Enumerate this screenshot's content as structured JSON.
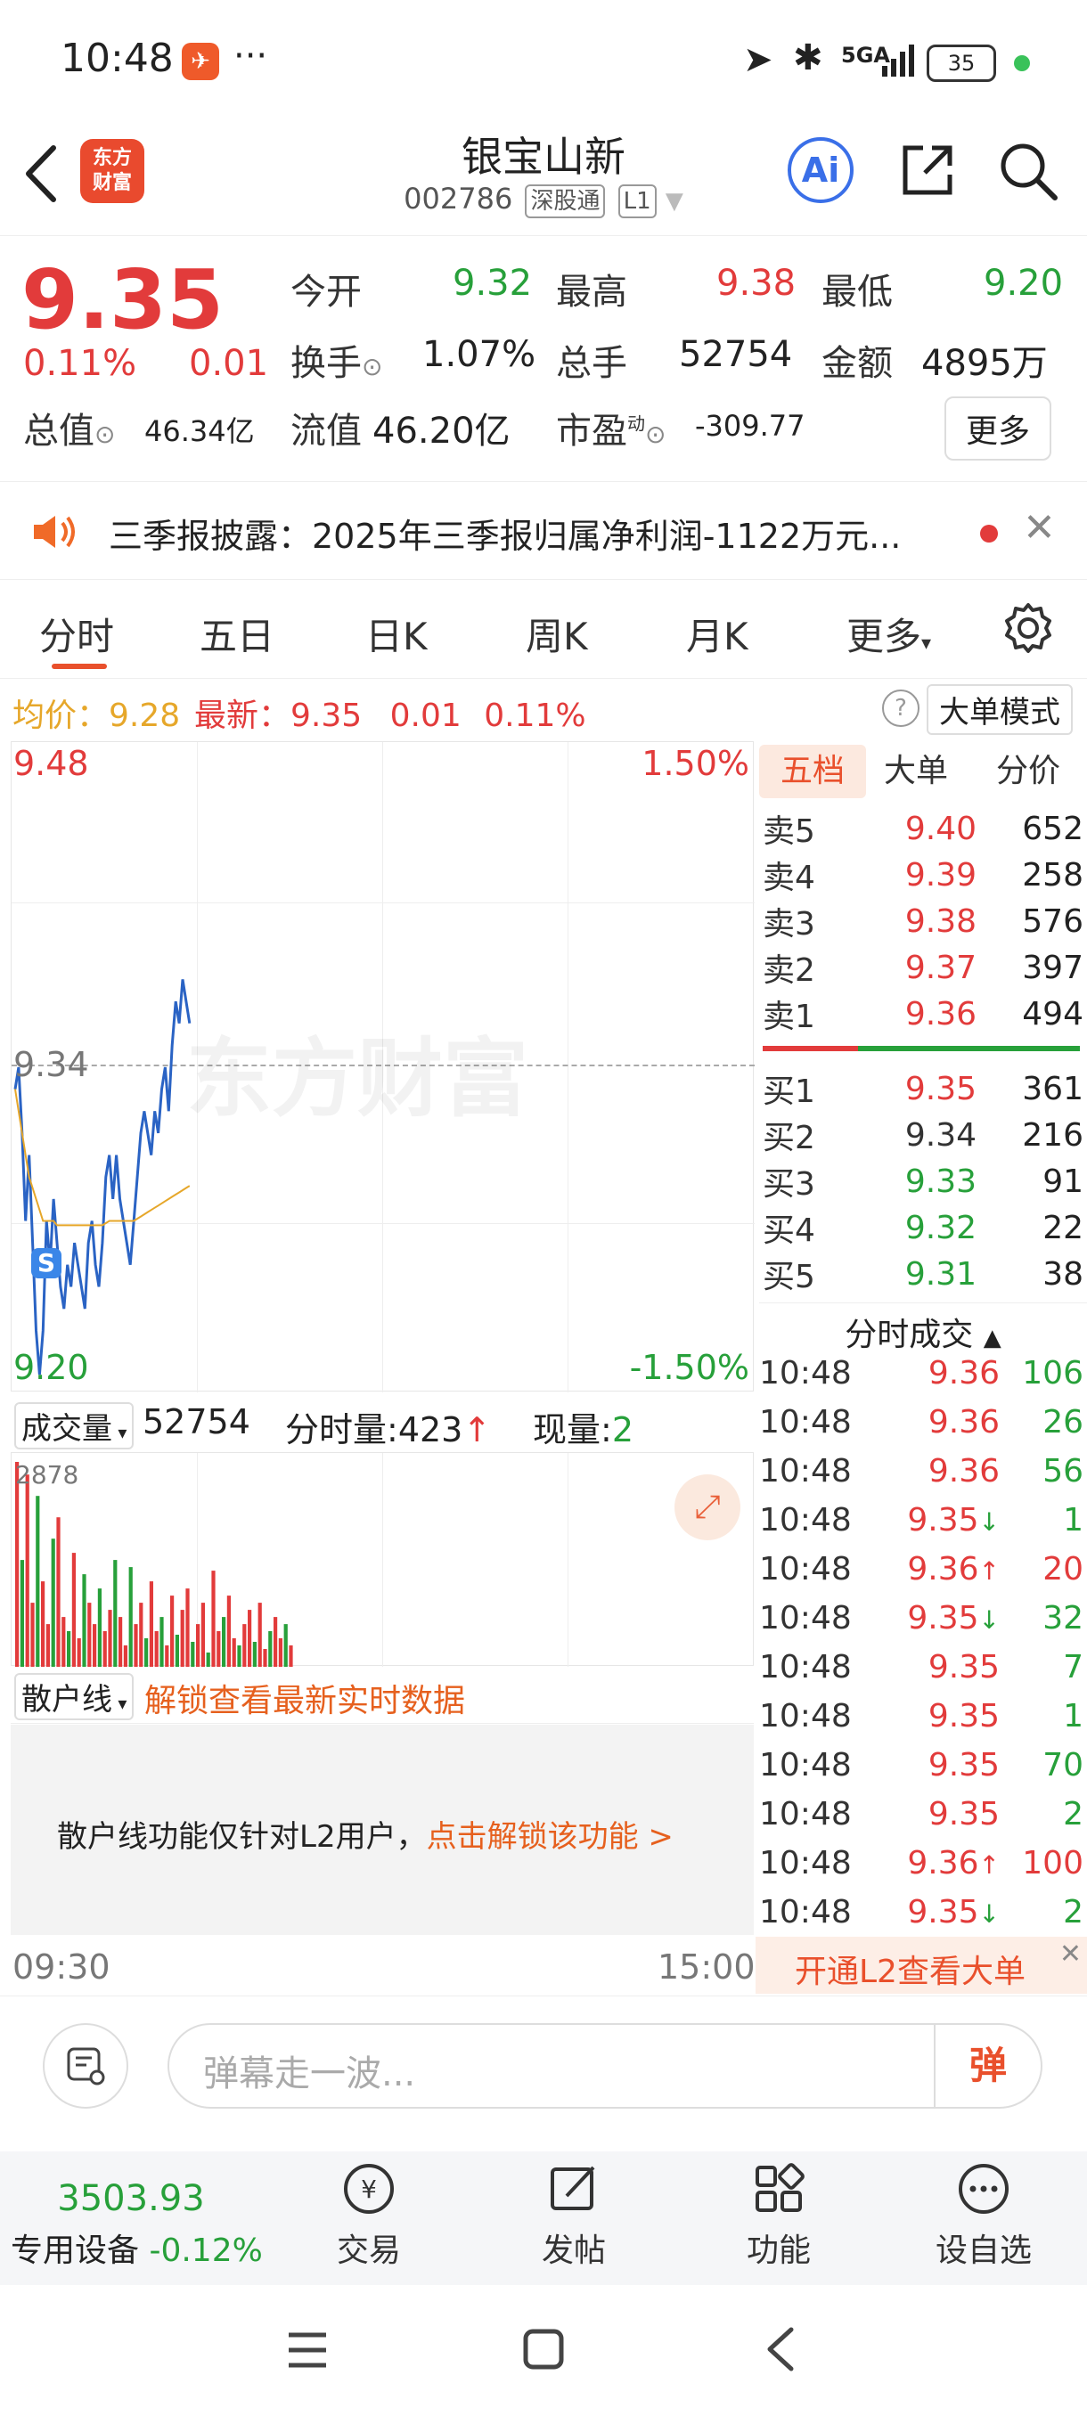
{
  "status_bar": {
    "time": "10:48",
    "dots": "···",
    "network": "5GA",
    "battery": "35"
  },
  "header": {
    "logo_line1": "东方",
    "logo_line2": "财富",
    "title": "银宝山新",
    "code": "002786",
    "market": "深股通",
    "level": "L1",
    "ai_label": "Ai"
  },
  "quote": {
    "price": "9.35",
    "change_pct": "0.11%",
    "change": "0.01",
    "open_label": "今开",
    "open": "9.32",
    "high_label": "最高",
    "high": "9.38",
    "low_label": "最低",
    "low": "9.20",
    "turnover_label": "换手",
    "turnover": "1.07%",
    "volume_label": "总手",
    "volume": "52754",
    "amount_label": "金额",
    "amount": "4895万",
    "mktcap_label": "总值",
    "mktcap": "46.34亿",
    "float_label": "流值",
    "float": "46.20亿",
    "pe_label": "市盈",
    "pe_sup": "动",
    "pe": "-309.77",
    "more": "更多"
  },
  "notice": {
    "text": "三季报披露：2025年三季报归属净利润-1122万元..."
  },
  "tabs": [
    {
      "label": "分时"
    },
    {
      "label": "五日"
    },
    {
      "label": "日K"
    },
    {
      "label": "周K"
    },
    {
      "label": "月K"
    },
    {
      "label": "更多"
    }
  ],
  "chart_header": {
    "avg_label": "均价：",
    "avg": "9.28",
    "latest_label": "最新：",
    "latest": "9.35",
    "chg": "0.01",
    "chg_pct": "0.11%",
    "mode_button": "大单模式"
  },
  "chart_labels": {
    "y_max": "9.48",
    "y_mid": "9.34",
    "y_min": "9.20",
    "pct_max": "1.50%",
    "pct_min": "-1.50%",
    "s_marker": "S",
    "watermark": "东方财富"
  },
  "chart_data": {
    "type": "line",
    "ylim": [
      9.2,
      9.48
    ],
    "prev_close": 9.34,
    "series": [
      {
        "values": [
          9.33,
          9.34,
          9.31,
          9.27,
          9.3,
          9.26,
          9.22,
          9.2,
          9.22,
          9.27,
          9.25,
          9.28,
          9.26,
          9.24,
          9.23,
          9.25,
          9.24,
          9.26,
          9.25,
          9.24,
          9.23,
          9.26,
          9.27,
          9.25,
          9.24,
          9.26,
          9.29,
          9.3,
          9.28,
          9.3,
          9.28,
          9.27,
          9.26,
          9.25,
          9.27,
          9.29,
          9.31,
          9.32,
          9.31,
          9.3,
          9.32,
          9.31,
          9.33,
          9.34,
          9.32,
          9.35,
          9.37,
          9.36,
          9.38,
          9.37,
          9.36
        ]
      },
      {
        "values": [
          9.33,
          9.32,
          9.31,
          9.3,
          9.29,
          9.285,
          9.28,
          9.275,
          9.27,
          9.27,
          9.27,
          9.27,
          9.268,
          9.268,
          9.268,
          9.268,
          9.268,
          9.268,
          9.268,
          9.268,
          9.268,
          9.268,
          9.268,
          9.268,
          9.268,
          9.268,
          9.269,
          9.27,
          9.27,
          9.27,
          9.27,
          9.27,
          9.27,
          9.27,
          9.27,
          9.271,
          9.272,
          9.273,
          9.274,
          9.275,
          9.276,
          9.277,
          9.278,
          9.279,
          9.28,
          9.281,
          9.282,
          9.283,
          9.284,
          9.285,
          9.286
        ]
      }
    ]
  },
  "volume_header": {
    "label": "成交量",
    "total": "52754",
    "minute_label": "分时量:",
    "minute_value": "423",
    "current_label": "现量:",
    "current_value": "2",
    "max_label": "2878"
  },
  "volume_data": [
    2878,
    1500,
    2700,
    900,
    2400,
    1200,
    600,
    1800,
    2100,
    700,
    500,
    1600,
    400,
    1300,
    900,
    600,
    1100,
    500,
    800,
    1500,
    700,
    300,
    1400,
    600,
    900,
    400,
    1200,
    500,
    700,
    300,
    1000,
    450,
    800,
    1100,
    350,
    600,
    900,
    200,
    1350,
    500,
    700,
    1000,
    400,
    300,
    600,
    800,
    350,
    900,
    250,
    500,
    700,
    400,
    600,
    300
  ],
  "retail": {
    "label": "散户线",
    "unlock_text": "解锁查看最新实时数据",
    "info": "散户线功能仅针对L2用户，",
    "cta": "点击解锁该功能 >"
  },
  "time_axis": {
    "start": "09:30",
    "end": "15:00"
  },
  "orderbook": {
    "tabs": [
      "五档",
      "大单",
      "分价"
    ],
    "asks": [
      {
        "label": "卖5",
        "price": "9.40",
        "vol": "652",
        "color": "#e23b3b"
      },
      {
        "label": "卖4",
        "price": "9.39",
        "vol": "258",
        "color": "#e23b3b"
      },
      {
        "label": "卖3",
        "price": "9.38",
        "vol": "576",
        "color": "#e23b3b"
      },
      {
        "label": "卖2",
        "price": "9.37",
        "vol": "397",
        "color": "#e23b3b"
      },
      {
        "label": "卖1",
        "price": "9.36",
        "vol": "494",
        "color": "#e23b3b"
      }
    ],
    "bids": [
      {
        "label": "买1",
        "price": "9.35",
        "vol": "361",
        "color": "#e23b3b"
      },
      {
        "label": "买2",
        "price": "9.34",
        "vol": "216",
        "color": "#333333"
      },
      {
        "label": "买3",
        "price": "9.33",
        "vol": "91",
        "color": "#27a03a"
      },
      {
        "label": "买4",
        "price": "9.32",
        "vol": "22",
        "color": "#27a03a"
      },
      {
        "label": "买5",
        "price": "9.31",
        "vol": "38",
        "color": "#27a03a"
      }
    ],
    "trades_title": "分时成交",
    "trades": [
      {
        "time": "10:48",
        "price": "9.36",
        "arrow": "",
        "vol": "106",
        "pcolor": "#e23b3b",
        "vcolor": "#27a03a"
      },
      {
        "time": "10:48",
        "price": "9.36",
        "arrow": "",
        "vol": "26",
        "pcolor": "#e23b3b",
        "vcolor": "#27a03a"
      },
      {
        "time": "10:48",
        "price": "9.36",
        "arrow": "",
        "vol": "56",
        "pcolor": "#e23b3b",
        "vcolor": "#27a03a"
      },
      {
        "time": "10:48",
        "price": "9.35",
        "arrow": "↓",
        "vol": "1",
        "pcolor": "#e23b3b",
        "vcolor": "#27a03a"
      },
      {
        "time": "10:48",
        "price": "9.36",
        "arrow": "↑",
        "vol": "20",
        "pcolor": "#e23b3b",
        "vcolor": "#e23b3b"
      },
      {
        "time": "10:48",
        "price": "9.35",
        "arrow": "↓",
        "vol": "32",
        "pcolor": "#e23b3b",
        "vcolor": "#27a03a"
      },
      {
        "time": "10:48",
        "price": "9.35",
        "arrow": "",
        "vol": "7",
        "pcolor": "#e23b3b",
        "vcolor": "#27a03a"
      },
      {
        "time": "10:48",
        "price": "9.35",
        "arrow": "",
        "vol": "1",
        "pcolor": "#e23b3b",
        "vcolor": "#27a03a"
      },
      {
        "time": "10:48",
        "price": "9.35",
        "arrow": "",
        "vol": "70",
        "pcolor": "#e23b3b",
        "vcolor": "#27a03a"
      },
      {
        "time": "10:48",
        "price": "9.35",
        "arrow": "",
        "vol": "2",
        "pcolor": "#e23b3b",
        "vcolor": "#27a03a"
      },
      {
        "time": "10:48",
        "price": "9.36",
        "arrow": "↑",
        "vol": "100",
        "pcolor": "#e23b3b",
        "vcolor": "#e23b3b"
      },
      {
        "time": "10:48",
        "price": "9.35",
        "arrow": "↓",
        "vol": "2",
        "pcolor": "#e23b3b",
        "vcolor": "#27a03a"
      }
    ],
    "l2_banner": "开通L2查看大单"
  },
  "comment": {
    "placeholder": "弹幕走一波...",
    "send": "弹"
  },
  "bottom_nav": {
    "index_value": "3503.93",
    "index_label": "专用设备",
    "index_change": "-0.12%",
    "items": [
      {
        "label": "交易"
      },
      {
        "label": "发帖"
      },
      {
        "label": "功能"
      },
      {
        "label": "设自选"
      }
    ]
  }
}
